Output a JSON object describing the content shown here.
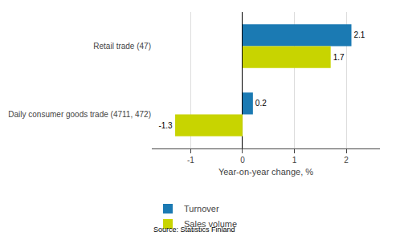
{
  "chart_data": {
    "type": "bar",
    "orientation": "horizontal",
    "categories": [
      "Daily consumer goods trade (4711, 472)",
      "Retail trade (47)"
    ],
    "series": [
      {
        "name": "Turnover",
        "color": "#1b7ab3",
        "values": [
          0.2,
          2.1
        ]
      },
      {
        "name": "Sales volume",
        "color": "#c8d400",
        "values": [
          -1.3,
          1.7
        ]
      }
    ],
    "xlabel": "Year-on-year change, %",
    "xlim": [
      -1.75,
      2.65
    ],
    "xticks": [
      -1,
      0,
      1,
      2
    ],
    "grid": true,
    "legend": "bottom",
    "data_labels": true,
    "annotations": [
      "Source: Statistics Finland"
    ]
  }
}
